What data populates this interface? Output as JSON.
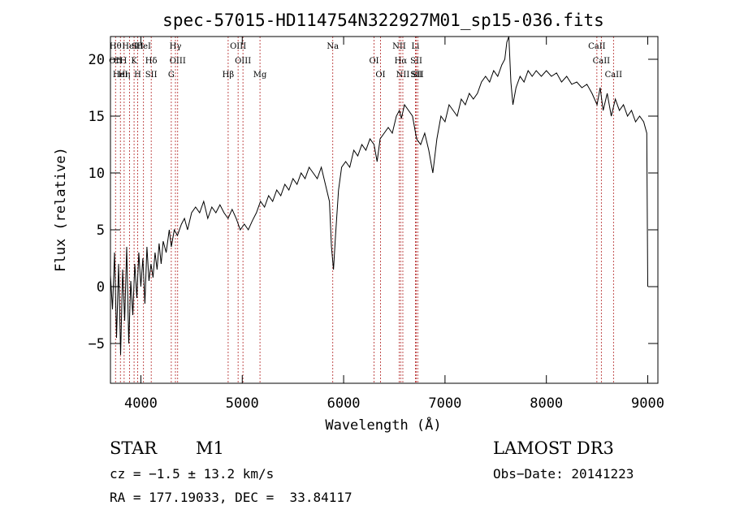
{
  "chart_data": {
    "type": "line",
    "title": "spec-57015-HD114754N322927M01_sp15-036.fits",
    "xlabel": "Wavelength (Å)",
    "ylabel": "Flux (relative)",
    "xlim": [
      3700,
      9100
    ],
    "ylim": [
      -8.5,
      22.0
    ],
    "x_ticks": [
      4000,
      5000,
      6000,
      7000,
      8000,
      9000
    ],
    "y_ticks": [
      -5,
      0,
      5,
      10,
      15,
      20
    ],
    "grid": false,
    "series": [
      {
        "values": [
          [
            3700,
            1.0
          ],
          [
            3720,
            -2.0
          ],
          [
            3740,
            3.0
          ],
          [
            3760,
            -4.5
          ],
          [
            3780,
            2.0
          ],
          [
            3800,
            -6.0
          ],
          [
            3820,
            1.5
          ],
          [
            3840,
            -3.0
          ],
          [
            3860,
            3.5
          ],
          [
            3880,
            -5.0
          ],
          [
            3900,
            0.5
          ],
          [
            3920,
            -2.5
          ],
          [
            3940,
            2.0
          ],
          [
            3960,
            -1.0
          ],
          [
            3980,
            3.0
          ],
          [
            4000,
            0.0
          ],
          [
            4020,
            2.5
          ],
          [
            4040,
            -1.5
          ],
          [
            4060,
            3.5
          ],
          [
            4080,
            0.5
          ],
          [
            4100,
            2.0
          ],
          [
            4120,
            0.8
          ],
          [
            4140,
            3.0
          ],
          [
            4160,
            1.5
          ],
          [
            4180,
            3.8
          ],
          [
            4200,
            2.0
          ],
          [
            4220,
            4.0
          ],
          [
            4250,
            3.0
          ],
          [
            4280,
            5.0
          ],
          [
            4300,
            3.5
          ],
          [
            4330,
            5.0
          ],
          [
            4360,
            4.5
          ],
          [
            4400,
            5.5
          ],
          [
            4430,
            6.0
          ],
          [
            4460,
            5.0
          ],
          [
            4500,
            6.5
          ],
          [
            4540,
            7.0
          ],
          [
            4580,
            6.5
          ],
          [
            4620,
            7.5
          ],
          [
            4660,
            6.0
          ],
          [
            4700,
            7.0
          ],
          [
            4740,
            6.5
          ],
          [
            4780,
            7.2
          ],
          [
            4820,
            6.5
          ],
          [
            4860,
            6.0
          ],
          [
            4900,
            6.8
          ],
          [
            4940,
            6.0
          ],
          [
            4980,
            5.0
          ],
          [
            5020,
            5.5
          ],
          [
            5060,
            5.0
          ],
          [
            5100,
            5.8
          ],
          [
            5140,
            6.5
          ],
          [
            5180,
            7.5
          ],
          [
            5220,
            7.0
          ],
          [
            5260,
            8.0
          ],
          [
            5300,
            7.5
          ],
          [
            5340,
            8.5
          ],
          [
            5380,
            8.0
          ],
          [
            5420,
            9.0
          ],
          [
            5460,
            8.5
          ],
          [
            5500,
            9.5
          ],
          [
            5540,
            9.0
          ],
          [
            5580,
            10.0
          ],
          [
            5620,
            9.5
          ],
          [
            5660,
            10.5
          ],
          [
            5700,
            10.0
          ],
          [
            5740,
            9.5
          ],
          [
            5780,
            10.5
          ],
          [
            5820,
            9.0
          ],
          [
            5860,
            7.5
          ],
          [
            5880,
            3.5
          ],
          [
            5900,
            1.5
          ],
          [
            5920,
            4.5
          ],
          [
            5950,
            8.5
          ],
          [
            5980,
            10.5
          ],
          [
            6020,
            11.0
          ],
          [
            6060,
            10.5
          ],
          [
            6100,
            12.0
          ],
          [
            6140,
            11.5
          ],
          [
            6180,
            12.5
          ],
          [
            6220,
            12.0
          ],
          [
            6260,
            13.0
          ],
          [
            6300,
            12.5
          ],
          [
            6330,
            11.0
          ],
          [
            6360,
            13.0
          ],
          [
            6400,
            13.5
          ],
          [
            6440,
            14.0
          ],
          [
            6480,
            13.5
          ],
          [
            6520,
            15.0
          ],
          [
            6550,
            15.5
          ],
          [
            6570,
            14.8
          ],
          [
            6600,
            16.0
          ],
          [
            6640,
            15.5
          ],
          [
            6680,
            15.0
          ],
          [
            6720,
            13.0
          ],
          [
            6760,
            12.5
          ],
          [
            6800,
            13.5
          ],
          [
            6840,
            12.0
          ],
          [
            6880,
            10.0
          ],
          [
            6920,
            13.0
          ],
          [
            6960,
            15.0
          ],
          [
            7000,
            14.5
          ],
          [
            7040,
            16.0
          ],
          [
            7080,
            15.5
          ],
          [
            7120,
            15.0
          ],
          [
            7160,
            16.5
          ],
          [
            7200,
            16.0
          ],
          [
            7240,
            17.0
          ],
          [
            7280,
            16.5
          ],
          [
            7320,
            17.0
          ],
          [
            7360,
            18.0
          ],
          [
            7400,
            18.5
          ],
          [
            7440,
            18.0
          ],
          [
            7480,
            19.0
          ],
          [
            7520,
            18.5
          ],
          [
            7560,
            19.5
          ],
          [
            7590,
            20.0
          ],
          [
            7610,
            21.5
          ],
          [
            7630,
            22.0
          ],
          [
            7650,
            18.0
          ],
          [
            7670,
            16.0
          ],
          [
            7700,
            17.5
          ],
          [
            7740,
            18.5
          ],
          [
            7780,
            18.0
          ],
          [
            7820,
            19.0
          ],
          [
            7860,
            18.5
          ],
          [
            7900,
            19.0
          ],
          [
            7950,
            18.5
          ],
          [
            8000,
            19.0
          ],
          [
            8050,
            18.5
          ],
          [
            8100,
            18.8
          ],
          [
            8150,
            18.0
          ],
          [
            8200,
            18.5
          ],
          [
            8250,
            17.8
          ],
          [
            8300,
            18.0
          ],
          [
            8350,
            17.5
          ],
          [
            8400,
            17.8
          ],
          [
            8450,
            17.0
          ],
          [
            8500,
            16.0
          ],
          [
            8530,
            17.5
          ],
          [
            8560,
            15.5
          ],
          [
            8600,
            17.0
          ],
          [
            8640,
            15.0
          ],
          [
            8680,
            16.5
          ],
          [
            8720,
            15.5
          ],
          [
            8760,
            16.0
          ],
          [
            8800,
            15.0
          ],
          [
            8840,
            15.5
          ],
          [
            8880,
            14.5
          ],
          [
            8920,
            15.0
          ],
          [
            8960,
            14.5
          ],
          [
            8990,
            13.5
          ],
          [
            9000,
            0.0
          ]
        ]
      }
    ],
    "lines": [
      {
        "x": 3750,
        "labels": [
          "Hθ",
          "OII"
        ]
      },
      {
        "x": 3798,
        "labels": [
          "CH",
          "HeI"
        ]
      },
      {
        "x": 3835,
        "labels": [
          "Hη"
        ]
      },
      {
        "x": 3889,
        "labels": [
          "HeI"
        ]
      },
      {
        "x": 3933,
        "labels": [
          "K"
        ]
      },
      {
        "x": 3968,
        "labels": [
          "H",
          "SII"
        ]
      },
      {
        "x": 4026,
        "labels": [
          "HeI"
        ]
      },
      {
        "x": 4102,
        "labels": [
          "Hδ",
          "SII"
        ]
      },
      {
        "x": 4300,
        "labels": [
          "G"
        ]
      },
      {
        "x": 4341,
        "labels": [
          "Hγ"
        ]
      },
      {
        "x": 4363,
        "labels": [
          "OIII"
        ]
      },
      {
        "x": 4861,
        "labels": [
          "Hβ"
        ]
      },
      {
        "x": 4959,
        "labels": [
          "OIII"
        ]
      },
      {
        "x": 5007,
        "labels": [
          "OIII"
        ]
      },
      {
        "x": 5175,
        "labels": [
          "Mg"
        ]
      },
      {
        "x": 5893,
        "labels": [
          "Na"
        ]
      },
      {
        "x": 6300,
        "labels": [
          "OI"
        ]
      },
      {
        "x": 6364,
        "labels": [
          "OI"
        ]
      },
      {
        "x": 6548,
        "labels": [
          "NII"
        ]
      },
      {
        "x": 6563,
        "labels": [
          "Hα"
        ]
      },
      {
        "x": 6584,
        "labels": [
          "NII"
        ]
      },
      {
        "x": 6708,
        "labels": [
          "Li"
        ]
      },
      {
        "x": 6717,
        "labels": [
          "SII",
          "SII"
        ]
      },
      {
        "x": 6731,
        "labels": [
          "SII"
        ]
      },
      {
        "x": 8498,
        "labels": [
          "CaII"
        ]
      },
      {
        "x": 8542,
        "labels": [
          "CaII"
        ]
      },
      {
        "x": 8662,
        "labels": [
          "CaII"
        ]
      }
    ]
  },
  "info": {
    "class_label": "STAR",
    "subclass": "M1",
    "survey": "LAMOST DR3",
    "cz": "cz = −1.5 ± 13.2 km/s",
    "obs_date": "Obs−Date: 20141223",
    "coords": "RA = 177.19033, DEC =  33.84117"
  }
}
